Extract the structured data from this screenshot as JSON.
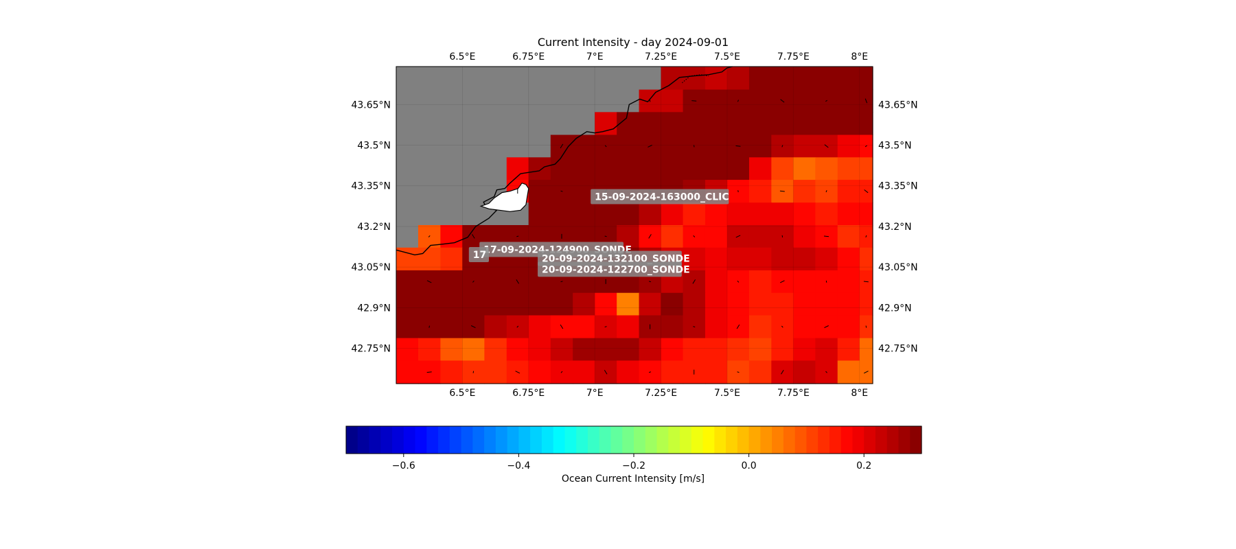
{
  "title": "Current Intensity - day 2024-09-01",
  "lon_ticks": [
    "6.5°E",
    "6.75°E",
    "7°E",
    "7.25°E",
    "7.5°E",
    "7.75°E",
    "8°E"
  ],
  "lat_ticks": [
    "43.65°N",
    "43.5°N",
    "43.35°N",
    "43.2°N",
    "43.05°N",
    "42.9°N",
    "42.75°N"
  ],
  "map_extent": {
    "lon": [
      6.25,
      8.05
    ],
    "lat": [
      42.62,
      43.79
    ]
  },
  "grid_lon": [
    6.25,
    6.333,
    6.417,
    6.5,
    6.583,
    6.667,
    6.75,
    6.833,
    6.917,
    7.0,
    7.083,
    7.167,
    7.25,
    7.333,
    7.417,
    7.5,
    7.583,
    7.667,
    7.75,
    7.833,
    7.917,
    8.0,
    8.05
  ],
  "grid_lat": [
    43.79,
    43.705,
    43.622,
    43.538,
    43.455,
    43.372,
    43.288,
    43.205,
    43.122,
    43.038,
    42.955,
    42.872,
    42.788,
    42.705,
    42.62
  ],
  "intensity_grid": [
    [
      null,
      null,
      null,
      null,
      null,
      null,
      null,
      null,
      null,
      null,
      null,
      null,
      0.24,
      0.24,
      0.23,
      0.25,
      0.28,
      0.29,
      0.29,
      0.29,
      0.29,
      0.29
    ],
    [
      null,
      null,
      null,
      null,
      null,
      null,
      null,
      null,
      null,
      null,
      null,
      0.22,
      0.23,
      0.29,
      0.29,
      0.29,
      0.29,
      0.29,
      0.29,
      0.29,
      0.29,
      0.29
    ],
    [
      null,
      null,
      null,
      null,
      null,
      null,
      null,
      null,
      null,
      0.21,
      0.28,
      0.29,
      0.29,
      0.29,
      0.29,
      0.29,
      0.29,
      0.29,
      0.29,
      0.29,
      0.29,
      0.29
    ],
    [
      null,
      null,
      null,
      null,
      null,
      null,
      null,
      0.28,
      0.28,
      0.29,
      0.29,
      0.29,
      0.29,
      0.29,
      0.29,
      0.29,
      0.29,
      0.25,
      0.22,
      0.23,
      0.19,
      0.18
    ],
    [
      null,
      null,
      null,
      null,
      null,
      0.19,
      0.26,
      0.29,
      0.29,
      0.29,
      0.29,
      0.29,
      0.29,
      0.29,
      0.29,
      0.28,
      0.19,
      0.11,
      0.06,
      0.09,
      0.1,
      0.1
    ],
    [
      null,
      null,
      null,
      null,
      null,
      0.18,
      0.29,
      0.29,
      0.29,
      0.29,
      0.29,
      0.29,
      0.29,
      0.26,
      0.23,
      0.18,
      0.15,
      0.09,
      0.12,
      0.1,
      0.15,
      0.15
    ],
    [
      null,
      null,
      null,
      null,
      null,
      null,
      0.29,
      0.29,
      0.29,
      0.29,
      0.29,
      0.25,
      0.19,
      0.14,
      0.17,
      0.19,
      0.2,
      0.2,
      0.17,
      0.15,
      0.16,
      0.16
    ],
    [
      null,
      0.09,
      0.18,
      0.29,
      0.29,
      0.29,
      0.29,
      0.29,
      0.29,
      0.29,
      0.24,
      0.16,
      0.12,
      0.16,
      0.18,
      0.22,
      0.23,
      0.22,
      0.2,
      0.18,
      0.13,
      0.14
    ],
    [
      0.1,
      0.1,
      0.12,
      0.29,
      0.29,
      0.29,
      0.29,
      0.29,
      0.29,
      0.29,
      0.29,
      0.25,
      0.21,
      0.21,
      0.19,
      0.21,
      0.21,
      0.23,
      0.23,
      0.21,
      0.16,
      0.13
    ],
    [
      0.29,
      0.29,
      0.29,
      0.29,
      0.29,
      0.29,
      0.29,
      0.29,
      0.29,
      0.29,
      0.29,
      0.27,
      0.23,
      0.24,
      0.19,
      0.17,
      0.15,
      0.16,
      0.18,
      0.18,
      0.16,
      0.14
    ],
    [
      0.29,
      0.29,
      0.29,
      0.29,
      0.29,
      0.29,
      0.29,
      0.29,
      0.25,
      0.17,
      0.05,
      0.22,
      0.28,
      0.25,
      0.19,
      0.16,
      0.14,
      0.15,
      0.16,
      0.18,
      0.16,
      0.14
    ],
    [
      0.29,
      0.29,
      0.29,
      0.29,
      0.24,
      0.22,
      0.2,
      0.18,
      0.17,
      0.21,
      0.2,
      0.27,
      0.26,
      0.25,
      0.2,
      0.16,
      0.12,
      0.14,
      0.17,
      0.17,
      0.16,
      0.13
    ],
    [
      0.18,
      0.14,
      0.09,
      0.08,
      0.12,
      0.17,
      0.2,
      0.22,
      0.27,
      0.27,
      0.27,
      0.22,
      0.18,
      0.15,
      0.15,
      0.12,
      0.1,
      0.15,
      0.19,
      0.21,
      0.15,
      0.08
    ],
    [
      0.18,
      0.18,
      0.14,
      0.12,
      0.13,
      0.15,
      0.18,
      0.19,
      0.2,
      0.22,
      0.2,
      0.16,
      0.15,
      0.15,
      0.14,
      0.1,
      0.13,
      0.21,
      0.23,
      0.21,
      0.08,
      0.08
    ]
  ],
  "grid_lines_lon": [
    6.5,
    6.75,
    7.0,
    7.25,
    7.5,
    7.75,
    8.0
  ],
  "grid_lines_lat": [
    43.65,
    43.5,
    43.35,
    43.2,
    43.05,
    42.9,
    42.75
  ],
  "coastline": [
    [
      6.25,
      43.113
    ],
    [
      6.32,
      43.095
    ],
    [
      6.35,
      43.1
    ],
    [
      6.38,
      43.13
    ],
    [
      6.43,
      43.135
    ],
    [
      6.47,
      43.14
    ],
    [
      6.52,
      43.16
    ],
    [
      6.55,
      43.2
    ],
    [
      6.6,
      43.23
    ],
    [
      6.63,
      43.26
    ],
    [
      6.59,
      43.27
    ],
    [
      6.58,
      43.29
    ],
    [
      6.62,
      43.31
    ],
    [
      6.63,
      43.335
    ],
    [
      6.66,
      43.34
    ],
    [
      6.68,
      43.36
    ],
    [
      6.72,
      43.395
    ],
    [
      6.79,
      43.405
    ],
    [
      6.81,
      43.42
    ],
    [
      6.85,
      43.43
    ],
    [
      6.87,
      43.45
    ],
    [
      6.9,
      43.495
    ],
    [
      6.93,
      43.525
    ],
    [
      6.97,
      43.55
    ],
    [
      7.0,
      43.545
    ],
    [
      7.03,
      43.55
    ],
    [
      7.07,
      43.56
    ],
    [
      7.12,
      43.6
    ],
    [
      7.13,
      43.65
    ],
    [
      7.17,
      43.67
    ],
    [
      7.2,
      43.66
    ],
    [
      7.23,
      43.695
    ],
    [
      7.28,
      43.72
    ],
    [
      7.32,
      43.75
    ],
    [
      7.37,
      43.755
    ],
    [
      7.43,
      43.76
    ],
    [
      7.48,
      43.77
    ],
    [
      7.5,
      43.785
    ],
    [
      7.52,
      43.79
    ]
  ],
  "coastline_dotted": [
    [
      7.33,
      43.73
    ],
    [
      7.36,
      43.755
    ],
    [
      7.4,
      43.76
    ],
    [
      7.43,
      43.755
    ]
  ],
  "island_outline": [
    [
      6.57,
      43.275
    ],
    [
      6.6,
      43.285
    ],
    [
      6.62,
      43.305
    ],
    [
      6.65,
      43.325
    ],
    [
      6.68,
      43.33
    ],
    [
      6.71,
      43.34
    ],
    [
      6.725,
      43.36
    ],
    [
      6.74,
      43.355
    ],
    [
      6.75,
      43.34
    ],
    [
      6.745,
      43.31
    ],
    [
      6.74,
      43.28
    ],
    [
      6.72,
      43.26
    ],
    [
      6.68,
      43.255
    ],
    [
      6.64,
      43.26
    ],
    [
      6.6,
      43.265
    ],
    [
      6.57,
      43.275
    ]
  ],
  "station_labels": [
    {
      "text": "15-09-2024-163000_CLIC",
      "lon": 7.0,
      "lat": 43.3
    },
    {
      "text": "17-09-2024-124900_SONDE",
      "lon": 6.58,
      "lat": 43.105
    },
    {
      "text": "20-09-2024-132100_SONDE",
      "lon": 6.8,
      "lat": 43.072
    },
    {
      "text": "20-09-2024-122700_SONDE",
      "lon": 6.8,
      "lat": 43.032
    },
    {
      "text": "17",
      "lon": 6.54,
      "lat": 43.086
    }
  ],
  "colorbar": {
    "label": "Ocean Current Intensity [m/s]",
    "range": [
      -0.7,
      0.3
    ],
    "ticks": [
      -0.6,
      -0.4,
      -0.2,
      0.0,
      0.2
    ],
    "tick_labels": [
      "−0.6",
      "−0.4",
      "−0.2",
      "0.0",
      "0.2"
    ],
    "colormap": "jet",
    "levels": 50
  },
  "colors": {
    "land": "#808080",
    "coast": "#000000",
    "label_box": "#8a8a8a"
  }
}
